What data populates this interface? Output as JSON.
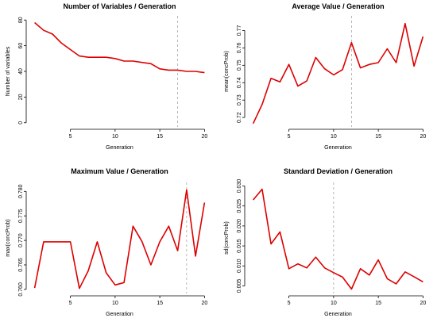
{
  "chart_data": [
    {
      "type": "line",
      "title": "Number of Variables / Generation",
      "xlabel": "Generation",
      "ylabel": "Number of variables",
      "xlim": [
        0.5,
        20.5
      ],
      "ylim": [
        -2,
        82
      ],
      "xticks": [
        5,
        10,
        15,
        20
      ],
      "yticks": [
        0,
        20,
        40,
        60,
        80
      ],
      "x": [
        1,
        2,
        3,
        4,
        5,
        6,
        7,
        8,
        9,
        10,
        11,
        12,
        13,
        14,
        15,
        16,
        17,
        18,
        19,
        20
      ],
      "y": [
        78,
        72,
        69,
        62,
        57,
        52,
        51,
        51,
        51,
        50,
        48,
        48,
        47,
        46,
        42,
        41,
        41,
        40,
        40,
        39
      ],
      "vline": 17,
      "color": "#dd0000"
    },
    {
      "type": "line",
      "title": "Average Value / Generation",
      "xlabel": "Generation",
      "ylabel": "mean(concProb)",
      "xlim": [
        0.5,
        20.5
      ],
      "ylim": [
        0.7155,
        0.7775
      ],
      "xticks": [
        5,
        10,
        15,
        20
      ],
      "yticks": [
        0.72,
        0.73,
        0.74,
        0.75,
        0.76,
        0.77
      ],
      "x": [
        1,
        2,
        3,
        4,
        5,
        6,
        7,
        8,
        9,
        10,
        11,
        12,
        13,
        14,
        15,
        16,
        17,
        18,
        19,
        20
      ],
      "y": [
        0.7165,
        0.7275,
        0.7425,
        0.7405,
        0.7505,
        0.738,
        0.741,
        0.7545,
        0.748,
        0.7445,
        0.7475,
        0.763,
        0.7485,
        0.7505,
        0.7515,
        0.7595,
        0.7515,
        0.774,
        0.7495,
        0.7665
      ],
      "vline": 12,
      "color": "#dd0000"
    },
    {
      "type": "line",
      "title": "Maximum Value / Generation",
      "xlabel": "Generation",
      "ylabel": "max(concProb)",
      "xlim": [
        0.5,
        20.5
      ],
      "ylim": [
        0.7595,
        0.7815
      ],
      "xticks": [
        5,
        10,
        15,
        20
      ],
      "yticks": [
        0.76,
        0.765,
        0.77,
        0.775,
        0.78
      ],
      "ytick_labels": [
        "0.760",
        "0.765",
        "0.770",
        "0.775",
        "0.780"
      ],
      "x": [
        1,
        2,
        3,
        4,
        5,
        6,
        7,
        8,
        9,
        10,
        11,
        12,
        13,
        14,
        15,
        16,
        17,
        18,
        19,
        20
      ],
      "y": [
        0.7603,
        0.7697,
        0.7697,
        0.7697,
        0.7697,
        0.7602,
        0.7638,
        0.7697,
        0.7634,
        0.7609,
        0.7614,
        0.7729,
        0.7698,
        0.765,
        0.7697,
        0.7729,
        0.7679,
        0.7803,
        0.7668,
        0.7777
      ],
      "vline": 18,
      "color": "#dd0000"
    },
    {
      "type": "line",
      "title": "Standard Deviation / Generation",
      "xlabel": "Generation",
      "ylabel": "sd(concProb)",
      "xlim": [
        0.5,
        20.5
      ],
      "ylim": [
        0.0035,
        0.0305
      ],
      "xticks": [
        5,
        10,
        15,
        20
      ],
      "yticks": [
        0.005,
        0.01,
        0.015,
        0.02,
        0.025,
        0.03
      ],
      "ytick_labels": [
        "0.005",
        "0.010",
        "0.015",
        "0.020",
        "0.025",
        "0.030"
      ],
      "x": [
        1,
        2,
        3,
        4,
        5,
        6,
        7,
        8,
        9,
        10,
        11,
        12,
        13,
        14,
        15,
        16,
        17,
        18,
        19,
        20
      ],
      "y": [
        0.0265,
        0.0292,
        0.0155,
        0.0185,
        0.0093,
        0.0105,
        0.0095,
        0.0122,
        0.0095,
        0.0083,
        0.0072,
        0.0042,
        0.0093,
        0.0077,
        0.0115,
        0.0068,
        0.0055,
        0.0085,
        0.0073,
        0.006
      ],
      "vline": 10,
      "color": "#dd0000"
    }
  ]
}
